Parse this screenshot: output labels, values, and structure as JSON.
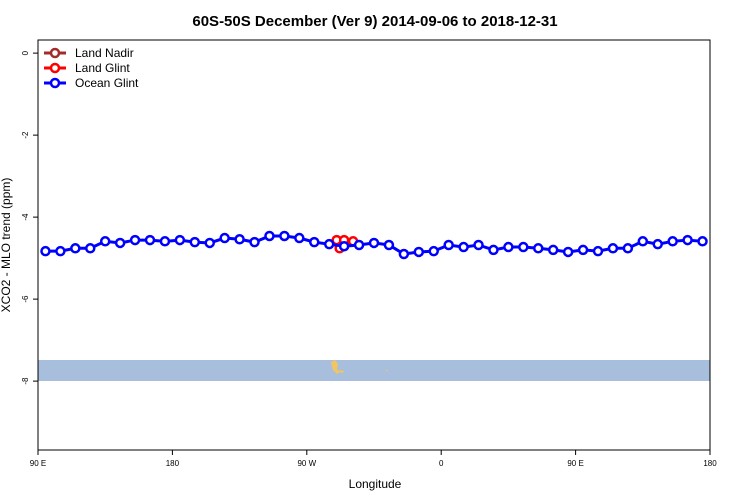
{
  "chart_data": {
    "type": "line",
    "title": "60S-50S December (Ver 9)   2014-09-06 to 2018-12-31",
    "xlabel": "Longitude",
    "ylabel": "XCO2 - MLO trend (ppm)",
    "xlim": [
      90,
      540
    ],
    "xticks": [
      {
        "value": 90,
        "label": "90 E"
      },
      {
        "value": 180,
        "label": "180"
      },
      {
        "value": 270,
        "label": "90 W"
      },
      {
        "value": 360,
        "label": "0"
      },
      {
        "value": 450,
        "label": "90 E"
      },
      {
        "value": 540,
        "label": "180"
      }
    ],
    "ylim": [
      -9.68,
      0.32
    ],
    "yticks": [
      0,
      -2,
      -4,
      -6,
      -8
    ],
    "legend": "top-left",
    "series": [
      {
        "name": "Land Nadir",
        "color": "#a52a2a",
        "x": [],
        "values": []
      },
      {
        "name": "Land Glint",
        "color": "#ff0000",
        "x": [
          290,
          292,
          295,
          301
        ],
        "values": [
          -4.56,
          -4.76,
          -4.56,
          -4.59
        ]
      },
      {
        "name": "Ocean Glint",
        "color": "#0000ff",
        "x": [
          95,
          105,
          115,
          125,
          135,
          145,
          155,
          165,
          175,
          185,
          195,
          205,
          215,
          225,
          235,
          245,
          255,
          265,
          275,
          285,
          295,
          305,
          315,
          325,
          335,
          345,
          355,
          365,
          375,
          385,
          395,
          405,
          415,
          425,
          435,
          445,
          455,
          465,
          475,
          485,
          495,
          505,
          515,
          525,
          535
        ],
        "values": [
          -4.83,
          -4.83,
          -4.76,
          -4.76,
          -4.59,
          -4.63,
          -4.56,
          -4.56,
          -4.59,
          -4.56,
          -4.61,
          -4.63,
          -4.51,
          -4.54,
          -4.61,
          -4.46,
          -4.46,
          -4.51,
          -4.61,
          -4.66,
          -4.71,
          -4.68,
          -4.63,
          -4.68,
          -4.9,
          -4.85,
          -4.83,
          -4.68,
          -4.73,
          -4.68,
          -4.8,
          -4.73,
          -4.73,
          -4.76,
          -4.8,
          -4.85,
          -4.8,
          -4.83,
          -4.76,
          -4.76,
          -4.59,
          -4.66,
          -4.59,
          -4.56,
          -4.59
        ]
      }
    ]
  }
}
